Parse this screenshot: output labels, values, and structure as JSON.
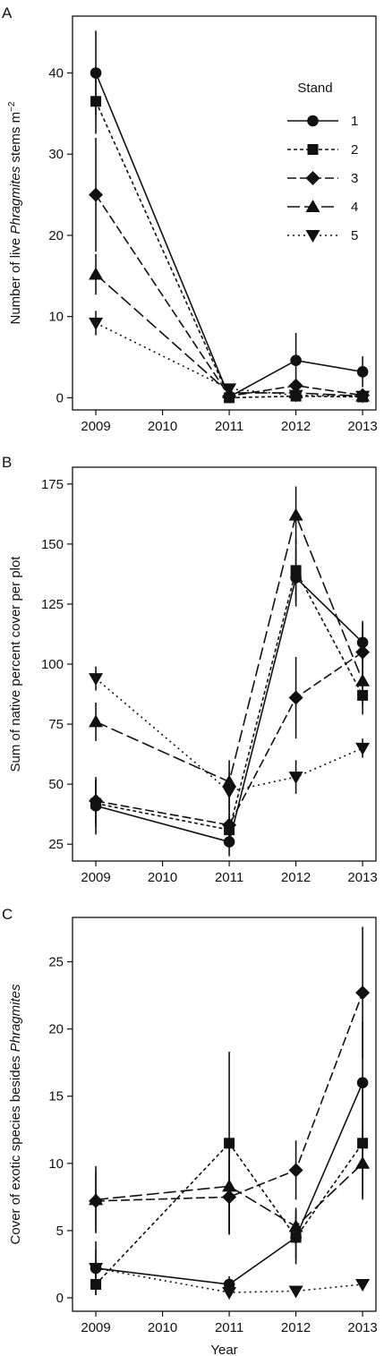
{
  "chart_data": [
    {
      "type": "line",
      "panel_letter": "A",
      "ylabel_parts": [
        "Number of live ",
        "Phragmites",
        " stems m",
        "−2"
      ],
      "xlabel": "",
      "x_ticks": [
        "2009",
        "2010",
        "2011",
        "2012",
        "2013"
      ],
      "y_ticks": [
        "0",
        "10",
        "20",
        "30",
        "40"
      ],
      "xlim": [
        2008.65,
        2013.2
      ],
      "ylim": [
        -1.5,
        47
      ],
      "legend": {
        "title": "Stand",
        "position": "top-right",
        "entries": [
          "1",
          "2",
          "3",
          "4",
          "5"
        ]
      },
      "series": [
        {
          "name": "1",
          "x": [
            2009,
            2011,
            2012,
            2013
          ],
          "values": [
            40.0,
            0.1,
            4.6,
            3.2
          ],
          "errors": [
            5.2,
            0.4,
            3.4,
            1.9
          ]
        },
        {
          "name": "2",
          "x": [
            2009,
            2011,
            2012,
            2013
          ],
          "values": [
            36.5,
            0.0,
            0.2,
            0.1
          ],
          "errors": [
            4.0,
            0.3,
            0.3,
            0.2
          ]
        },
        {
          "name": "3",
          "x": [
            2009,
            2011,
            2012,
            2013
          ],
          "values": [
            25.0,
            0.2,
            1.5,
            0.3
          ],
          "errors": [
            7.0,
            0.4,
            0.8,
            0.4
          ]
        },
        {
          "name": "4",
          "x": [
            2009,
            2011,
            2012,
            2013
          ],
          "values": [
            15.2,
            0.6,
            0.6,
            0.2
          ],
          "errors": [
            2.5,
            0.5,
            0.5,
            0.3
          ]
        },
        {
          "name": "5",
          "x": [
            2009,
            2011,
            2012,
            2013
          ],
          "values": [
            9.2,
            1.1,
            0.3,
            0.2
          ],
          "errors": [
            1.5,
            0.6,
            0.3,
            0.2
          ]
        }
      ]
    },
    {
      "type": "line",
      "panel_letter": "B",
      "ylabel_parts": [
        "Sum of native percent cover per plot"
      ],
      "xlabel": "",
      "x_ticks": [
        "2009",
        "2010",
        "2011",
        "2012",
        "2013"
      ],
      "y_ticks": [
        "25",
        "50",
        "75",
        "100",
        "125",
        "150",
        "175"
      ],
      "xlim": [
        2008.65,
        2013.2
      ],
      "ylim": [
        18,
        182
      ],
      "series": [
        {
          "name": "1",
          "x": [
            2009,
            2011,
            2012,
            2013
          ],
          "values": [
            41,
            26,
            136,
            109
          ],
          "errors": [
            12,
            6,
            12,
            9
          ]
        },
        {
          "name": "2",
          "x": [
            2009,
            2011,
            2012,
            2013
          ],
          "values": [
            42,
            31,
            139,
            87
          ],
          "errors": [
            10,
            7,
            13,
            8
          ]
        },
        {
          "name": "3",
          "x": [
            2009,
            2011,
            2012,
            2013
          ],
          "values": [
            43,
            33,
            86,
            105
          ],
          "errors": [
            9,
            9,
            17,
            12
          ]
        },
        {
          "name": "4",
          "x": [
            2009,
            2011,
            2012,
            2013
          ],
          "values": [
            76,
            51,
            162,
            93
          ],
          "errors": [
            8,
            9,
            12,
            10
          ]
        },
        {
          "name": "5",
          "x": [
            2009,
            2011,
            2012,
            2013
          ],
          "values": [
            94,
            47,
            53,
            65
          ],
          "errors": [
            5,
            8,
            7,
            4
          ]
        }
      ]
    },
    {
      "type": "line",
      "panel_letter": "C",
      "ylabel_parts": [
        "Cover of exotic species besides ",
        "Phragmites"
      ],
      "xlabel": "Year",
      "x_ticks": [
        "2009",
        "2010",
        "2011",
        "2012",
        "2013"
      ],
      "y_ticks": [
        "0",
        "5",
        "10",
        "15",
        "20",
        "25"
      ],
      "xlim": [
        2008.65,
        2013.2
      ],
      "ylim": [
        -1.0,
        28.3
      ],
      "series": [
        {
          "name": "1",
          "x": [
            2009,
            2011,
            2012,
            2013
          ],
          "values": [
            2.2,
            1.0,
            4.5,
            16.0
          ],
          "errors": [
            1.4,
            0.6,
            2.0,
            4.5
          ]
        },
        {
          "name": "2",
          "x": [
            2009,
            2011,
            2012,
            2013
          ],
          "values": [
            1.0,
            11.5,
            4.5,
            11.5
          ],
          "errors": [
            0.8,
            6.8,
            1.6,
            4.0
          ]
        },
        {
          "name": "3",
          "x": [
            2009,
            2011,
            2012,
            2013
          ],
          "values": [
            7.2,
            7.5,
            9.5,
            22.7
          ],
          "errors": [
            2.2,
            2.8,
            2.2,
            4.9
          ]
        },
        {
          "name": "4",
          "x": [
            2009,
            2011,
            2012,
            2013
          ],
          "values": [
            7.3,
            8.3,
            5.3,
            10.0
          ],
          "errors": [
            2.5,
            3.3,
            1.4,
            2.7
          ]
        },
        {
          "name": "5",
          "x": [
            2009,
            2011,
            2012,
            2013
          ],
          "values": [
            2.2,
            0.4,
            0.5,
            1.0
          ],
          "errors": [
            2.0,
            0.4,
            0.3,
            0.3
          ]
        }
      ]
    }
  ]
}
